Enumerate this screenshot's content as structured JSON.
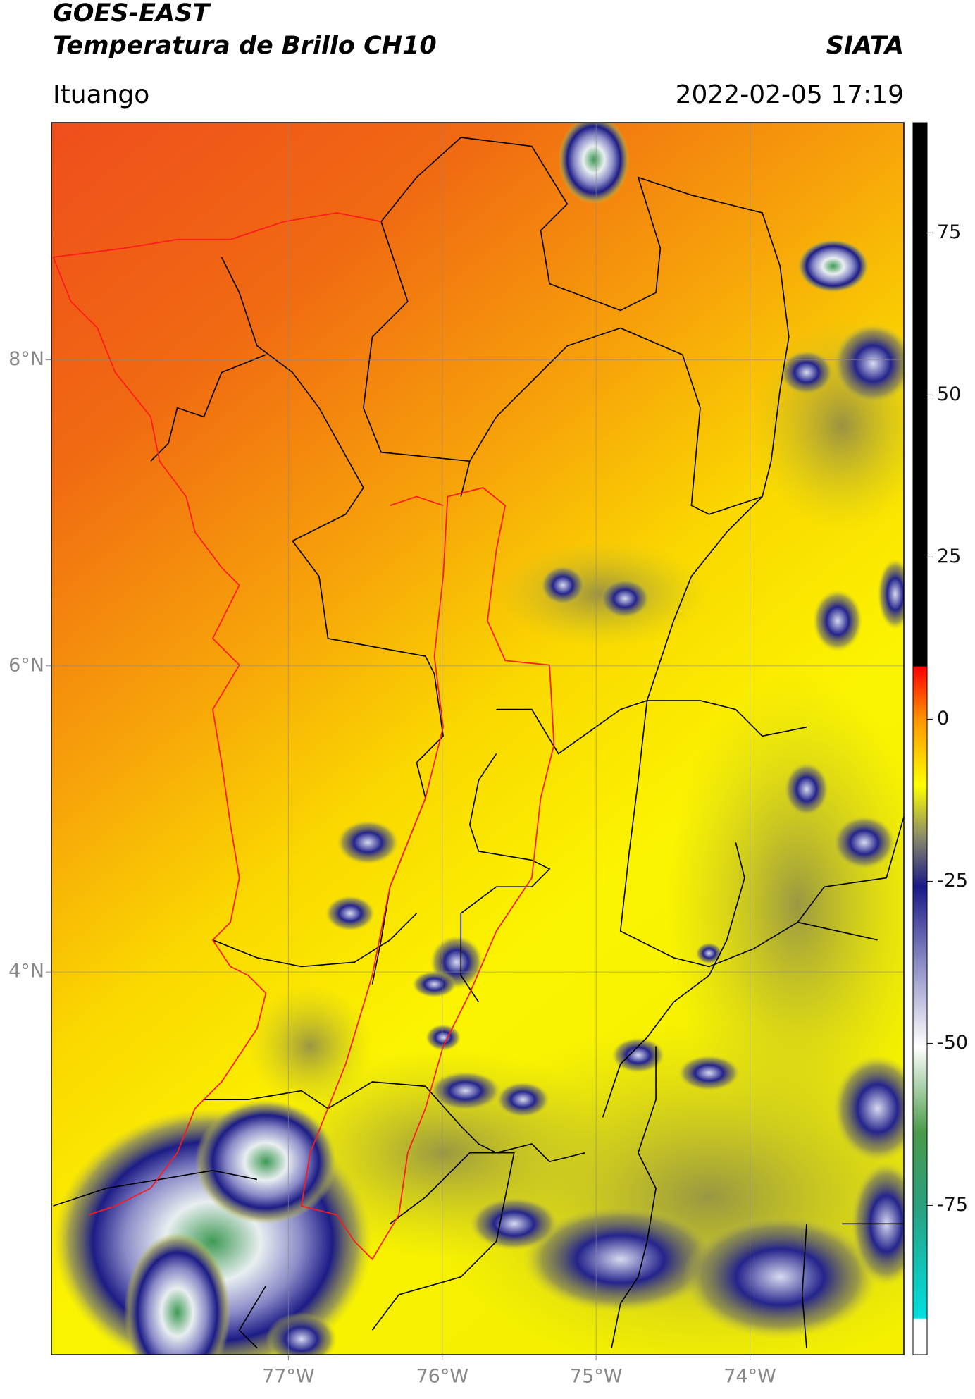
{
  "header": {
    "title": "GOES-EAST",
    "subtitle": "Temperatura de Brillo CH10",
    "agency": "SIATA",
    "location": "Ituango",
    "timestamp": "2022-02-05 17:19"
  },
  "map": {
    "lon_lim": [
      -78.54,
      -73.0
    ],
    "lat_lim": [
      1.5,
      9.55
    ],
    "lon_ticks": [
      {
        "value": -77,
        "label": "77°W"
      },
      {
        "value": -76,
        "label": "76°W"
      },
      {
        "value": -75,
        "label": "75°W"
      },
      {
        "value": -74,
        "label": "74°W"
      }
    ],
    "lat_ticks": [
      {
        "value": 8,
        "label": "8°N"
      },
      {
        "value": 6,
        "label": "6°N"
      },
      {
        "value": 4,
        "label": "4°N"
      }
    ]
  },
  "colorbar": {
    "lim": [
      -98,
      92
    ],
    "ticks": [
      75,
      50,
      25,
      0,
      -25,
      -50,
      -75
    ]
  }
}
